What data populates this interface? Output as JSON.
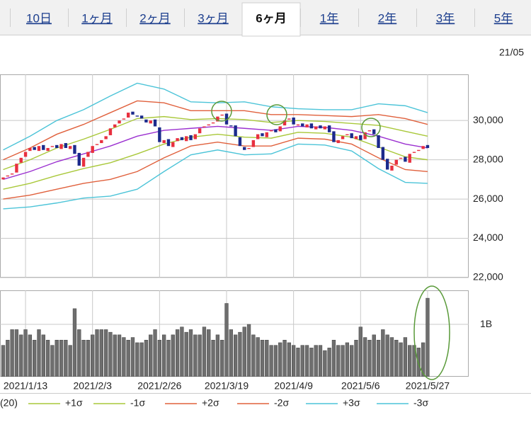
{
  "tabs": {
    "items": [
      "10日",
      "1ヶ月",
      "2ヶ月",
      "3ヶ月",
      "6ヶ月",
      "1年",
      "2年",
      "3年",
      "5年"
    ],
    "selected": 4
  },
  "date_label": "21/05",
  "chart_data": [
    {
      "type": "candlestick",
      "open": [
        27000,
        27150,
        27250,
        27350,
        27850,
        28150,
        28450,
        28650,
        28450,
        28750,
        28450,
        28650,
        28750,
        28550,
        28850,
        28550,
        28750,
        28350,
        27650,
        28150,
        28350,
        28750,
        28850,
        29050,
        29250,
        29650,
        29850,
        30050,
        30150,
        30450,
        30250,
        30250,
        30050,
        29850,
        30050,
        29650,
        28850,
        29050,
        28650,
        28950,
        29150,
        28950,
        29250,
        29050,
        29350,
        29650,
        29750,
        29850,
        29950,
        30250,
        30350,
        29750,
        29750,
        29150,
        28650,
        28550,
        28650,
        29050,
        29350,
        29150,
        29450,
        29550,
        29450,
        29750,
        30050,
        30150,
        29750,
        29850,
        29650,
        29850,
        29550,
        29750,
        29550,
        29750,
        29450,
        28850,
        29050,
        29250,
        29350,
        29050,
        29250,
        29050,
        29450,
        29550,
        29250,
        28650,
        28050,
        27450,
        27750,
        28050,
        28150,
        27850,
        28350,
        28450,
        28550,
        28750
      ],
      "close": [
        27100,
        27200,
        27300,
        27800,
        28100,
        28400,
        28600,
        28500,
        28700,
        28500,
        28600,
        28700,
        28600,
        28800,
        28600,
        28700,
        28300,
        27700,
        28100,
        28400,
        28700,
        28800,
        29000,
        29200,
        29600,
        29800,
        30000,
        30100,
        30400,
        30300,
        30200,
        30100,
        29900,
        30000,
        29700,
        28900,
        29000,
        28700,
        28900,
        29100,
        29000,
        29200,
        29000,
        29300,
        29600,
        29700,
        29800,
        29900,
        30200,
        30300,
        29800,
        29700,
        29200,
        28700,
        28500,
        28600,
        29000,
        29300,
        29200,
        29400,
        29500,
        29400,
        29700,
        30000,
        30100,
        29800,
        29800,
        29700,
        29800,
        29600,
        29700,
        29600,
        29700,
        29400,
        28900,
        29000,
        29200,
        29300,
        29100,
        29200,
        29000,
        29400,
        29500,
        29300,
        28600,
        28000,
        27500,
        27700,
        28000,
        28100,
        27900,
        28300,
        28400,
        28500,
        28700,
        28600
      ],
      "up_color": "#e8303f",
      "down_color": "#1b2a8c",
      "ylim": [
        22000,
        32350
      ],
      "yticks": [
        {
          "value": 22000,
          "label": "22,000"
        },
        {
          "value": 24000,
          "label": "24,000"
        },
        {
          "value": 26000,
          "label": "26,000"
        },
        {
          "value": 28000,
          "label": "28,000"
        },
        {
          "value": 30000,
          "label": "30,000"
        }
      ],
      "grid": true,
      "series": [
        {
          "name": "(20)",
          "color": "#9b30d0",
          "x": [
            0,
            6,
            12,
            18,
            24,
            30,
            36,
            42,
            48,
            54,
            60,
            66,
            72,
            78,
            84,
            90,
            95
          ],
          "values": [
            27000,
            27400,
            27900,
            28300,
            28700,
            29200,
            29500,
            29600,
            29700,
            29600,
            29500,
            29700,
            29650,
            29500,
            29200,
            28800,
            28600
          ]
        },
        {
          "name": "+1σ",
          "color": "#a9c83a",
          "x": [
            0,
            6,
            12,
            18,
            24,
            30,
            36,
            42,
            48,
            54,
            60,
            66,
            72,
            78,
            84,
            90,
            95
          ],
          "values": [
            27500,
            28000,
            28600,
            29050,
            29550,
            30100,
            30200,
            30050,
            30100,
            30050,
            29900,
            30000,
            29950,
            29850,
            29750,
            29450,
            29200
          ]
        },
        {
          "name": "-1σ",
          "color": "#a9c83a",
          "x": [
            0,
            6,
            12,
            18,
            24,
            30,
            36,
            42,
            48,
            54,
            60,
            66,
            72,
            78,
            84,
            90,
            95
          ],
          "values": [
            26500,
            26800,
            27200,
            27550,
            27850,
            28300,
            28800,
            29150,
            29300,
            29150,
            29100,
            29400,
            29350,
            29150,
            28650,
            28150,
            28000
          ]
        },
        {
          "name": "+2σ",
          "color": "#e0603c",
          "x": [
            0,
            6,
            12,
            18,
            24,
            30,
            36,
            42,
            48,
            54,
            60,
            66,
            72,
            78,
            84,
            90,
            95
          ],
          "values": [
            28000,
            28600,
            29300,
            29800,
            30400,
            31000,
            30900,
            30500,
            30500,
            30500,
            30300,
            30300,
            30250,
            30200,
            30300,
            30100,
            29800
          ]
        },
        {
          "name": "-2σ",
          "color": "#e0603c",
          "x": [
            0,
            6,
            12,
            18,
            24,
            30,
            36,
            42,
            48,
            54,
            60,
            66,
            72,
            78,
            84,
            90,
            95
          ],
          "values": [
            26000,
            26200,
            26500,
            26800,
            27000,
            27400,
            28100,
            28700,
            28900,
            28700,
            28700,
            29100,
            29050,
            28800,
            28100,
            27500,
            27400
          ]
        },
        {
          "name": "+3σ",
          "color": "#4cc4d8",
          "x": [
            0,
            6,
            12,
            18,
            24,
            30,
            36,
            42,
            48,
            54,
            60,
            66,
            72,
            78,
            84,
            90,
            95
          ],
          "values": [
            28500,
            29200,
            30000,
            30550,
            31250,
            31900,
            31600,
            30950,
            30900,
            30950,
            30700,
            30600,
            30550,
            30550,
            30850,
            30750,
            30400
          ]
        },
        {
          "name": "-3σ",
          "color": "#4cc4d8",
          "x": [
            0,
            6,
            12,
            18,
            24,
            30,
            36,
            42,
            48,
            54,
            60,
            66,
            72,
            78,
            84,
            90,
            95
          ],
          "values": [
            25500,
            25600,
            25800,
            26050,
            26150,
            26500,
            27400,
            28250,
            28500,
            28250,
            28300,
            28800,
            28750,
            28450,
            27550,
            26850,
            26800
          ]
        }
      ]
    },
    {
      "type": "bar",
      "categories": [
        null,
        null,
        null,
        null,
        null,
        "2021/1/13",
        null,
        null,
        null,
        null,
        null,
        null,
        null,
        null,
        null,
        null,
        null,
        null,
        null,
        null,
        "2021/2/3",
        null,
        null,
        null,
        null,
        null,
        null,
        null,
        null,
        null,
        null,
        null,
        null,
        null,
        null,
        "2021/2/26",
        null,
        null,
        null,
        null,
        null,
        null,
        null,
        null,
        null,
        null,
        null,
        null,
        null,
        null,
        "2021/3/19",
        null,
        null,
        null,
        null,
        null,
        null,
        null,
        null,
        null,
        null,
        null,
        null,
        null,
        null,
        "2021/4/9",
        null,
        null,
        null,
        null,
        null,
        null,
        null,
        null,
        null,
        null,
        null,
        null,
        null,
        null,
        "2021/5/6",
        null,
        null,
        null,
        null,
        null,
        null,
        null,
        null,
        null,
        null,
        null,
        null,
        null,
        null,
        "2021/5/27"
      ],
      "values": [
        0.6,
        0.7,
        0.9,
        0.9,
        0.8,
        0.9,
        0.8,
        0.7,
        0.9,
        0.8,
        0.7,
        0.6,
        0.7,
        0.7,
        0.7,
        0.6,
        1.3,
        0.9,
        0.7,
        0.7,
        0.8,
        0.9,
        0.9,
        0.9,
        0.85,
        0.8,
        0.8,
        0.75,
        0.7,
        0.75,
        0.65,
        0.65,
        0.7,
        0.8,
        0.9,
        0.7,
        0.8,
        0.7,
        0.8,
        0.9,
        0.95,
        0.85,
        0.9,
        0.8,
        0.8,
        0.95,
        0.9,
        0.7,
        0.8,
        0.7,
        1.4,
        0.9,
        0.8,
        0.85,
        0.95,
        1.0,
        0.8,
        0.75,
        0.7,
        0.7,
        0.6,
        0.6,
        0.65,
        0.7,
        0.65,
        0.6,
        0.55,
        0.6,
        0.6,
        0.55,
        0.6,
        0.6,
        0.5,
        0.55,
        0.7,
        0.6,
        0.6,
        0.65,
        0.6,
        0.7,
        0.95,
        0.75,
        0.7,
        0.8,
        0.7,
        0.9,
        0.8,
        0.75,
        0.7,
        0.65,
        0.75,
        0.6,
        0.6,
        0.55,
        0.65,
        1.5
      ],
      "color": "#6e6e6e",
      "ylim": [
        0,
        1.65
      ],
      "yticks": [
        {
          "value": 1,
          "label": "1B"
        }
      ],
      "grid": true
    }
  ]
}
